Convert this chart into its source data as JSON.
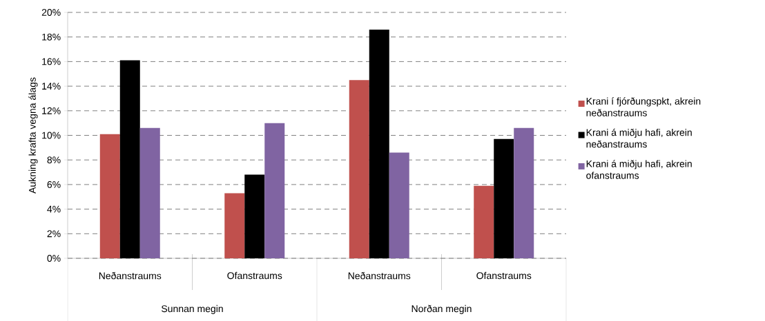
{
  "chart_data": {
    "type": "bar",
    "ylabel": "Aukning krafta vegna álags",
    "categories": [
      "Neðanstraums",
      "Ofanstraums",
      "Neðanstraums",
      "Ofanstraums"
    ],
    "annotations": [
      "Sunnan megin",
      "Norðan megin"
    ],
    "series": [
      {
        "name": "Krani í fjórðungspkt, akrein neðanstraums",
        "color": "#c0504d",
        "values": [
          10.1,
          5.3,
          14.5,
          5.9
        ]
      },
      {
        "name": "Krani á miðju hafi, akrein neðanstraums",
        "color": "#000000",
        "values": [
          16.1,
          6.8,
          18.6,
          9.7
        ]
      },
      {
        "name": "Krani á miðju hafi, akrein ofanstraums",
        "color": "#8064a2",
        "values": [
          10.6,
          11.0,
          8.6,
          10.6
        ]
      }
    ],
    "ylim": [
      0,
      20
    ],
    "yticks": [
      {
        "value": 0,
        "label": "0%"
      },
      {
        "value": 2,
        "label": "2%"
      },
      {
        "value": 4,
        "label": "4%"
      },
      {
        "value": 6,
        "label": "6%"
      },
      {
        "value": 8,
        "label": "8%"
      },
      {
        "value": 10,
        "label": "10%"
      },
      {
        "value": 12,
        "label": "12%"
      },
      {
        "value": 14,
        "label": "14%"
      },
      {
        "value": 16,
        "label": "16%"
      },
      {
        "value": 18,
        "label": "18%"
      },
      {
        "value": 20,
        "label": "20%"
      }
    ],
    "grid": "y",
    "legend": "right"
  }
}
